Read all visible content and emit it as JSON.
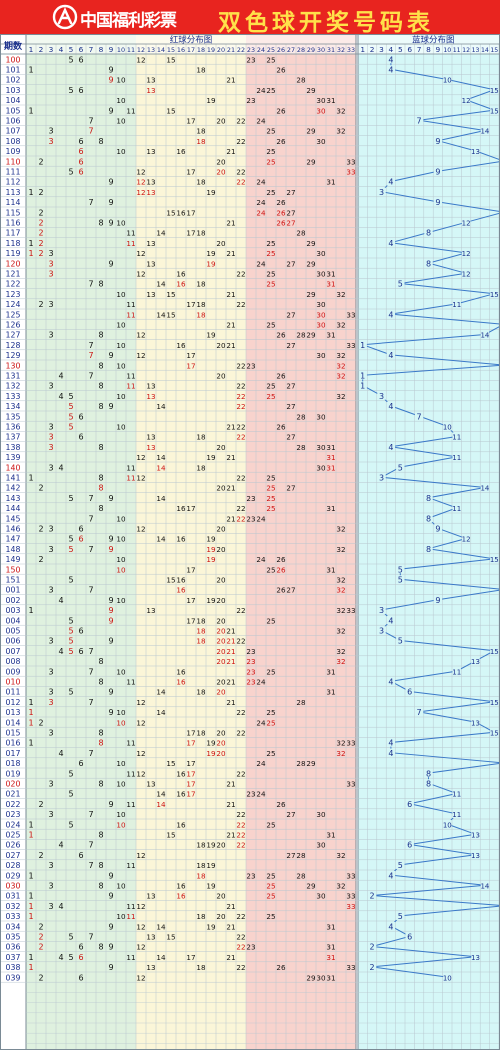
{
  "banner": {
    "brand": "中国福利彩票",
    "title": "双色球开奖号码表"
  },
  "headers": {
    "period": "期数",
    "red_zone": "红球分布图",
    "blue_zone": "蓝球分布图"
  },
  "colors": {
    "banner": "#e8241f",
    "title": "#ffe14a",
    "zone1": "#dff1df",
    "zone2": "#fbf6d8",
    "zone3": "#f8d3cd",
    "zone4": "#d5f7f7",
    "number": "#111111",
    "repeat_number": "#cc1111",
    "blue_number": "#1a2f8c",
    "blue_line": "#3a78c8",
    "period_red": "#cc1111",
    "period_default": "#1a2f8c"
  },
  "chart_data": {
    "type": "table",
    "red_columns": [
      "1",
      "2",
      "3",
      "4",
      "5",
      "6",
      "7",
      "8",
      "9",
      "10",
      "11",
      "12",
      "13",
      "14",
      "15",
      "16",
      "17",
      "18",
      "19",
      "20",
      "21",
      "22",
      "23",
      "24",
      "25",
      "26",
      "27",
      "28",
      "29",
      "30",
      "31",
      "32",
      "33"
    ],
    "blue_columns": [
      "1",
      "2",
      "3",
      "4",
      "5",
      "6",
      "7",
      "8",
      "9",
      "10",
      "11",
      "12",
      "13",
      "14",
      "15",
      "16"
    ],
    "draws": [
      {
        "period": "100",
        "red": [
          5,
          6,
          12,
          15,
          23,
          25
        ],
        "blue": 4
      },
      {
        "period": "101",
        "red": [
          1,
          9,
          18,
          26
        ],
        "blue": 4
      },
      {
        "period": "102",
        "red": [
          9,
          10,
          13,
          21,
          28
        ],
        "blue": 10
      },
      {
        "period": "103",
        "red": [
          5,
          6,
          13,
          24,
          25,
          29
        ],
        "blue": 15
      },
      {
        "period": "104",
        "red": [
          10,
          19,
          23,
          30,
          31
        ],
        "blue": 12
      },
      {
        "period": "105",
        "red": [
          1,
          9,
          11,
          15,
          26,
          30,
          32
        ],
        "blue": 15
      },
      {
        "period": "106",
        "red": [
          7,
          10,
          17,
          20,
          22,
          24
        ],
        "blue": 7
      },
      {
        "period": "107",
        "red": [
          3,
          7,
          18,
          25,
          29,
          32
        ],
        "blue": 14
      },
      {
        "period": "108",
        "red": [
          3,
          6,
          8,
          18,
          22,
          26,
          30
        ],
        "blue": 9
      },
      {
        "period": "109",
        "red": [
          6,
          10,
          13,
          16,
          21,
          25
        ],
        "blue": 13
      },
      {
        "period": "110",
        "red": [
          2,
          6,
          20,
          25,
          29,
          33
        ],
        "blue": 16
      },
      {
        "period": "111",
        "red": [
          5,
          6,
          12,
          17,
          20,
          22,
          33
        ],
        "blue": 9
      },
      {
        "period": "112",
        "red": [
          9,
          12,
          13,
          18,
          22,
          24,
          31
        ],
        "blue": 4
      },
      {
        "period": "113",
        "red": [
          1,
          2,
          12,
          13,
          19,
          25,
          27
        ],
        "blue": 3
      },
      {
        "period": "114",
        "red": [
          7,
          9,
          24,
          26
        ],
        "blue": 9
      },
      {
        "period": "115",
        "red": [
          2,
          15,
          16,
          17,
          24,
          26,
          27
        ],
        "blue": 16
      },
      {
        "period": "116",
        "red": [
          2,
          8,
          9,
          10,
          21,
          26,
          27
        ],
        "blue": 12
      },
      {
        "period": "117",
        "red": [
          2,
          11,
          14,
          17,
          18,
          28
        ],
        "blue": 8
      },
      {
        "period": "118",
        "red": [
          1,
          2,
          11,
          13,
          20,
          25,
          29
        ],
        "blue": 4
      },
      {
        "period": "119",
        "red": [
          1,
          2,
          3,
          12,
          19,
          21,
          25,
          30
        ],
        "blue": 12
      },
      {
        "period": "120",
        "red": [
          3,
          9,
          13,
          19,
          24,
          27,
          29
        ],
        "blue": 8
      },
      {
        "period": "121",
        "red": [
          3,
          12,
          16,
          22,
          25,
          30,
          31
        ],
        "blue": 12
      },
      {
        "period": "122",
        "red": [
          7,
          8,
          14,
          16,
          18,
          25,
          31
        ],
        "blue": 5
      },
      {
        "period": "123",
        "red": [
          10,
          13,
          15,
          21,
          29,
          32
        ],
        "blue": 15
      },
      {
        "period": "124",
        "red": [
          2,
          3,
          11,
          17,
          18,
          22,
          30
        ],
        "blue": 11
      },
      {
        "period": "125",
        "red": [
          11,
          14,
          15,
          18,
          27,
          30,
          33
        ],
        "blue": 4
      },
      {
        "period": "126",
        "red": [
          10,
          21,
          25,
          30,
          32
        ],
        "blue": 16
      },
      {
        "period": "127",
        "red": [
          3,
          8,
          12,
          19,
          26,
          28,
          29,
          31
        ],
        "blue": 14
      },
      {
        "period": "128",
        "red": [
          7,
          10,
          16,
          20,
          21,
          27,
          33
        ],
        "blue": 1
      },
      {
        "period": "129",
        "red": [
          7,
          9,
          12,
          17,
          30,
          32
        ],
        "blue": 4
      },
      {
        "period": "130",
        "red": [
          8,
          10,
          17,
          22,
          23,
          32
        ],
        "blue": 16
      },
      {
        "period": "131",
        "red": [
          4,
          7,
          11,
          20,
          26,
          32
        ],
        "blue": 1
      },
      {
        "period": "132",
        "red": [
          3,
          8,
          11,
          13,
          22,
          25,
          27
        ],
        "blue": 1
      },
      {
        "period": "133",
        "red": [
          4,
          5,
          10,
          13,
          22,
          25,
          32
        ],
        "blue": 3
      },
      {
        "period": "134",
        "red": [
          5,
          8,
          9,
          14,
          22,
          27
        ],
        "blue": 4
      },
      {
        "period": "135",
        "red": [
          5,
          6,
          28,
          30
        ],
        "blue": 7
      },
      {
        "period": "136",
        "red": [
          3,
          5,
          10,
          21,
          22,
          26
        ],
        "blue": 10
      },
      {
        "period": "137",
        "red": [
          3,
          6,
          13,
          18,
          22,
          27
        ],
        "blue": 11
      },
      {
        "period": "138",
        "red": [
          3,
          8,
          13,
          20,
          28,
          30,
          31
        ],
        "blue": 4
      },
      {
        "period": "139",
        "red": [
          12,
          14,
          19,
          21,
          31
        ],
        "blue": 11
      },
      {
        "period": "140",
        "red": [
          3,
          4,
          11,
          14,
          18,
          30,
          31
        ],
        "blue": 5
      },
      {
        "period": "141",
        "red": [
          1,
          8,
          11,
          12,
          22,
          25
        ],
        "blue": 3
      },
      {
        "period": "142",
        "red": [
          2,
          8,
          20,
          21,
          25,
          27
        ],
        "blue": 14
      },
      {
        "period": "143",
        "red": [
          5,
          7,
          9,
          14,
          23,
          25
        ],
        "blue": 8
      },
      {
        "period": "144",
        "red": [
          8,
          16,
          17,
          22,
          25,
          31
        ],
        "blue": 11
      },
      {
        "period": "145",
        "red": [
          7,
          10,
          21,
          22,
          23,
          24
        ],
        "blue": 8
      },
      {
        "period": "146",
        "red": [
          2,
          3,
          6,
          12,
          20,
          32
        ],
        "blue": 9
      },
      {
        "period": "147",
        "red": [
          5,
          6,
          9,
          10,
          14,
          16,
          19
        ],
        "blue": 12
      },
      {
        "period": "148",
        "red": [
          3,
          5,
          7,
          9,
          19,
          20,
          32
        ],
        "blue": 8
      },
      {
        "period": "149",
        "red": [
          2,
          10,
          19,
          24,
          26
        ],
        "blue": 15
      },
      {
        "period": "150",
        "red": [
          10,
          17,
          25,
          26,
          31
        ],
        "blue": 5
      },
      {
        "period": "151",
        "red": [
          5,
          15,
          16,
          20,
          32
        ],
        "blue": 5
      },
      {
        "period": "001",
        "red": [
          3,
          7,
          16,
          26,
          27,
          32
        ],
        "blue": 16
      },
      {
        "period": "002",
        "red": [
          4,
          9,
          10,
          17,
          19,
          20
        ],
        "blue": 9
      },
      {
        "period": "003",
        "red": [
          1,
          9,
          13,
          22,
          32,
          33
        ],
        "blue": 3
      },
      {
        "period": "004",
        "red": [
          5,
          9,
          17,
          18,
          20,
          25
        ],
        "blue": 4
      },
      {
        "period": "005",
        "red": [
          5,
          6,
          18,
          20,
          21,
          32
        ],
        "blue": 3
      },
      {
        "period": "006",
        "red": [
          3,
          5,
          9,
          18,
          20,
          21,
          22
        ],
        "blue": 5
      },
      {
        "period": "007",
        "red": [
          4,
          5,
          6,
          7,
          20,
          21,
          23,
          32
        ],
        "blue": 15
      },
      {
        "period": "008",
        "red": [
          8,
          20,
          21,
          23,
          32
        ],
        "blue": 13
      },
      {
        "period": "009",
        "red": [
          3,
          7,
          10,
          16,
          23,
          25,
          31
        ],
        "blue": 11
      },
      {
        "period": "010",
        "red": [
          8,
          11,
          16,
          20,
          21,
          23,
          24
        ],
        "blue": 4
      },
      {
        "period": "011",
        "red": [
          3,
          5,
          9,
          14,
          18,
          20,
          31
        ],
        "blue": 6
      },
      {
        "period": "012",
        "red": [
          1,
          3,
          7,
          12,
          21,
          28
        ],
        "blue": 15
      },
      {
        "period": "013",
        "red": [
          1,
          9,
          10,
          14,
          22,
          25
        ],
        "blue": 7
      },
      {
        "period": "014",
        "red": [
          1,
          2,
          10,
          12,
          24,
          25
        ],
        "blue": 13
      },
      {
        "period": "015",
        "red": [
          3,
          8,
          17,
          18,
          20,
          22
        ],
        "blue": 15
      },
      {
        "period": "016",
        "red": [
          1,
          8,
          11,
          17,
          19,
          20,
          32,
          33
        ],
        "blue": 4
      },
      {
        "period": "017",
        "red": [
          4,
          7,
          12,
          19,
          20,
          25,
          32
        ],
        "blue": 4
      },
      {
        "period": "018",
        "red": [
          6,
          10,
          15,
          17,
          24,
          28,
          29
        ],
        "blue": 16
      },
      {
        "period": "019",
        "red": [
          5,
          11,
          12,
          16,
          17,
          22
        ],
        "blue": 8
      },
      {
        "period": "020",
        "red": [
          3,
          8,
          10,
          13,
          17,
          21,
          33
        ],
        "blue": 8
      },
      {
        "period": "021",
        "red": [
          5,
          14,
          16,
          17,
          23,
          24
        ],
        "blue": 11
      },
      {
        "period": "022",
        "red": [
          2,
          9,
          11,
          14,
          21,
          26
        ],
        "blue": 6
      },
      {
        "period": "023",
        "red": [
          3,
          7,
          10,
          22,
          27,
          30
        ],
        "blue": 11
      },
      {
        "period": "024",
        "red": [
          1,
          5,
          10,
          16,
          22,
          25
        ],
        "blue": 10
      },
      {
        "period": "025",
        "red": [
          1,
          8,
          15,
          21,
          22,
          31
        ],
        "blue": 13
      },
      {
        "period": "026",
        "red": [
          4,
          7,
          18,
          19,
          20,
          22,
          30
        ],
        "blue": 6
      },
      {
        "period": "027",
        "red": [
          2,
          6,
          12,
          27,
          28,
          32
        ],
        "blue": 13
      },
      {
        "period": "028",
        "red": [
          3,
          7,
          8,
          11,
          18,
          19
        ],
        "blue": 5
      },
      {
        "period": "029",
        "red": [
          1,
          9,
          18,
          23,
          25,
          28,
          33
        ],
        "blue": 4
      },
      {
        "period": "030",
        "red": [
          3,
          8,
          10,
          16,
          19,
          25,
          29,
          32
        ],
        "blue": 14
      },
      {
        "period": "031",
        "red": [
          1,
          9,
          13,
          16,
          20,
          25,
          30,
          33
        ],
        "blue": 2
      },
      {
        "period": "032",
        "red": [
          1,
          3,
          4,
          11,
          12,
          21,
          33
        ],
        "blue": 16
      },
      {
        "period": "033",
        "red": [
          1,
          10,
          11,
          18,
          20,
          22,
          25
        ],
        "blue": 5
      },
      {
        "period": "034",
        "red": [
          2,
          9,
          12,
          14,
          19,
          21,
          31
        ],
        "blue": 4
      },
      {
        "period": "035",
        "red": [
          2,
          5,
          7,
          13,
          15,
          22
        ],
        "blue": 6
      },
      {
        "period": "036",
        "red": [
          2,
          6,
          8,
          9,
          12,
          22,
          23,
          31
        ],
        "blue": 2
      },
      {
        "period": "037",
        "red": [
          1,
          4,
          5,
          6,
          11,
          14,
          17,
          21,
          31
        ],
        "blue": 13
      },
      {
        "period": "038",
        "red": [
          1,
          9,
          13,
          18,
          22,
          26,
          33
        ],
        "blue": 2
      },
      {
        "period": "039",
        "red": [
          2,
          6,
          12,
          29,
          30,
          31
        ],
        "blue": 10
      }
    ]
  }
}
